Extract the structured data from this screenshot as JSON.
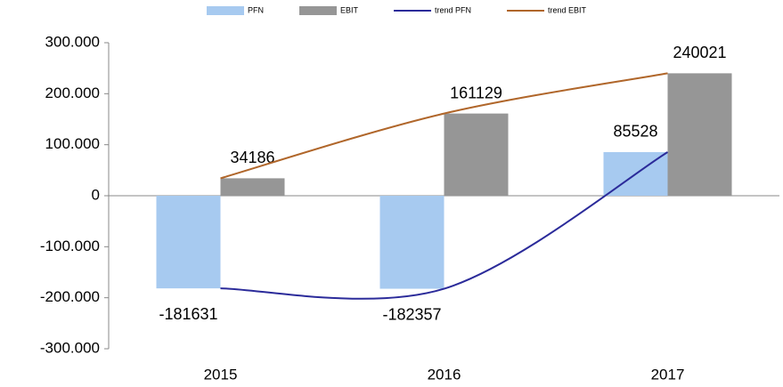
{
  "chart_data": {
    "type": "bar",
    "categories": [
      "2015",
      "2016",
      "2017"
    ],
    "series": [
      {
        "name": "PFN",
        "color": "#a7caf0",
        "values": [
          -181631,
          -182357,
          85528
        ]
      },
      {
        "name": "EBIT",
        "color": "#969696",
        "values": [
          34186,
          161129,
          240021
        ]
      },
      {
        "name": "trend PFN",
        "type": "line",
        "color": "#2b2b9a",
        "values": [
          -181631,
          -182357,
          85528
        ]
      },
      {
        "name": "trend EBIT",
        "type": "line",
        "color": "#b0662a",
        "values": [
          34186,
          161129,
          240021
        ]
      }
    ],
    "ylim": [
      -300000,
      300000
    ],
    "yticks": [
      {
        "value": -300000,
        "label": "-300.000"
      },
      {
        "value": -200000,
        "label": "-200.000"
      },
      {
        "value": -100000,
        "label": "-100.000"
      },
      0,
      {
        "value": 100000,
        "label": "100.000"
      },
      {
        "value": 200000,
        "label": "200.000"
      },
      {
        "value": 300000,
        "label": "300.000"
      }
    ],
    "legend": "top",
    "grid": false
  }
}
